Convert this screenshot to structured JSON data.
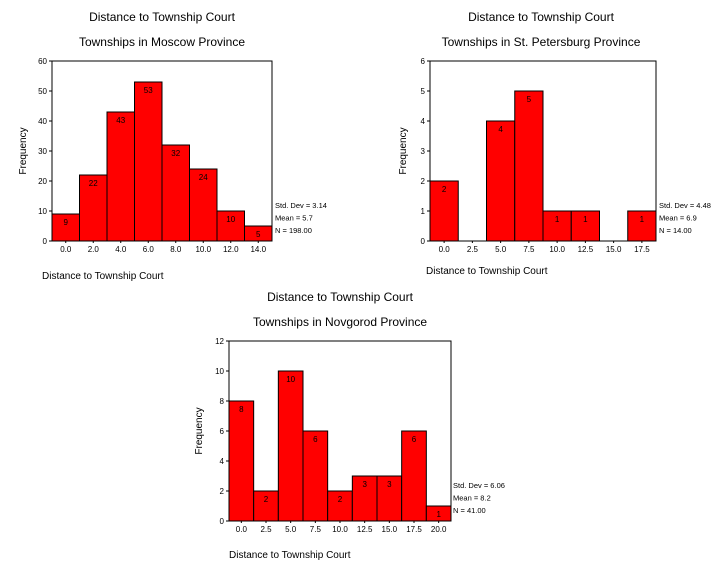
{
  "chart_data": [
    {
      "type": "bar",
      "title": "Distance to Township Court",
      "subtitle": "Townships in Moscow Province",
      "xlabel": "Distance to Township Court",
      "ylabel": "Frequency",
      "categories": [
        "0.0",
        "2.0",
        "4.0",
        "6.0",
        "8.0",
        "10.0",
        "12.0",
        "14.0"
      ],
      "values": [
        9,
        22,
        43,
        53,
        32,
        24,
        10,
        5
      ],
      "ylim": [
        0,
        60
      ],
      "yticks": [
        "0",
        "10",
        "20",
        "30",
        "40",
        "50",
        "60"
      ],
      "stats": [
        "Std. Dev = 3.14",
        "Mean = 5.7",
        "N = 198.00"
      ],
      "bar_color": "#ff0000"
    },
    {
      "type": "bar",
      "title": "Distance to Township Court",
      "subtitle": "Townships in St. Petersburg Province",
      "xlabel": "Distance to Township Court",
      "ylabel": "Frequency",
      "categories": [
        "0.0",
        "2.5",
        "5.0",
        "7.5",
        "10.0",
        "12.5",
        "15.0",
        "17.5"
      ],
      "values": [
        2,
        0,
        4,
        5,
        1,
        1,
        0,
        1
      ],
      "ylim": [
        0,
        6
      ],
      "yticks": [
        "0",
        "1",
        "2",
        "3",
        "4",
        "5",
        "6"
      ],
      "stats": [
        "Std. Dev = 4.48",
        "Mean = 6.9",
        "N = 14.00"
      ],
      "bar_color": "#ff0000"
    },
    {
      "type": "bar",
      "title": "Distance to Township Court",
      "subtitle": "Townships in Novgorod Province",
      "xlabel": "Distance to Township Court",
      "ylabel": "Frequency",
      "categories": [
        "0.0",
        "2.5",
        "5.0",
        "7.5",
        "10.0",
        "12.5",
        "15.0",
        "17.5",
        "20.0"
      ],
      "values": [
        8,
        2,
        10,
        6,
        2,
        3,
        3,
        6,
        1
      ],
      "ylim": [
        0,
        12
      ],
      "yticks": [
        "0",
        "2",
        "4",
        "6",
        "8",
        "10",
        "12"
      ],
      "stats": [
        "Std. Dev = 6.06",
        "Mean = 8.2",
        "N = 41.00"
      ],
      "bar_color": "#ff0000"
    }
  ]
}
